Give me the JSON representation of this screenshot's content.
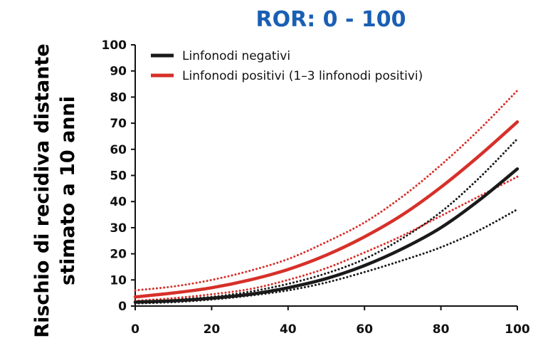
{
  "chart_data": {
    "type": "line",
    "title": "ROR: 0 - 100",
    "title_color": "#1a5fb4",
    "xlabel": "",
    "ylabel_lines": [
      "Rischio di recidiva distante",
      "stimato a 10 anni"
    ],
    "xlim": [
      0,
      100
    ],
    "ylim": [
      0,
      100
    ],
    "xticks": [
      0,
      20,
      40,
      60,
      80,
      100
    ],
    "yticks": [
      0,
      10,
      20,
      30,
      40,
      50,
      60,
      70,
      80,
      90,
      100
    ],
    "grid": false,
    "legend_position": "top-left",
    "x": [
      0,
      10,
      20,
      30,
      40,
      50,
      60,
      70,
      80,
      90,
      100
    ],
    "series": [
      {
        "name": "Linfonodi negativi",
        "color": "#1a1a1a",
        "style": "solid",
        "values": [
          1.5,
          2.0,
          3.0,
          4.5,
          7.0,
          10.5,
          15.5,
          22.0,
          30.0,
          40.5,
          52.5
        ]
      },
      {
        "color": "#1a1a1a",
        "style": "dotted",
        "values": [
          2.0,
          2.5,
          3.5,
          5.5,
          8.5,
          12.5,
          18.0,
          26.0,
          36.0,
          49.0,
          64.0
        ]
      },
      {
        "color": "#1a1a1a",
        "style": "dotted",
        "values": [
          1.0,
          1.5,
          2.5,
          4.0,
          6.0,
          9.0,
          13.0,
          17.5,
          22.5,
          29.0,
          37.0
        ]
      },
      {
        "name": "Linfonodi positivi (1–3 linfonodi positivi)",
        "color": "#d7302a",
        "style": "solid",
        "values": [
          3.5,
          5.0,
          7.0,
          10.0,
          14.0,
          19.5,
          26.5,
          35.0,
          45.5,
          57.5,
          70.5
        ]
      },
      {
        "color": "#d7302a",
        "style": "dotted",
        "values": [
          6.0,
          7.5,
          10.0,
          13.5,
          18.0,
          24.5,
          32.0,
          42.0,
          54.0,
          67.5,
          82.5
        ]
      },
      {
        "color": "#d7302a",
        "style": "dotted",
        "values": [
          2.0,
          3.0,
          4.5,
          6.5,
          10.0,
          14.5,
          20.5,
          27.0,
          34.5,
          42.0,
          49.5
        ]
      }
    ]
  }
}
